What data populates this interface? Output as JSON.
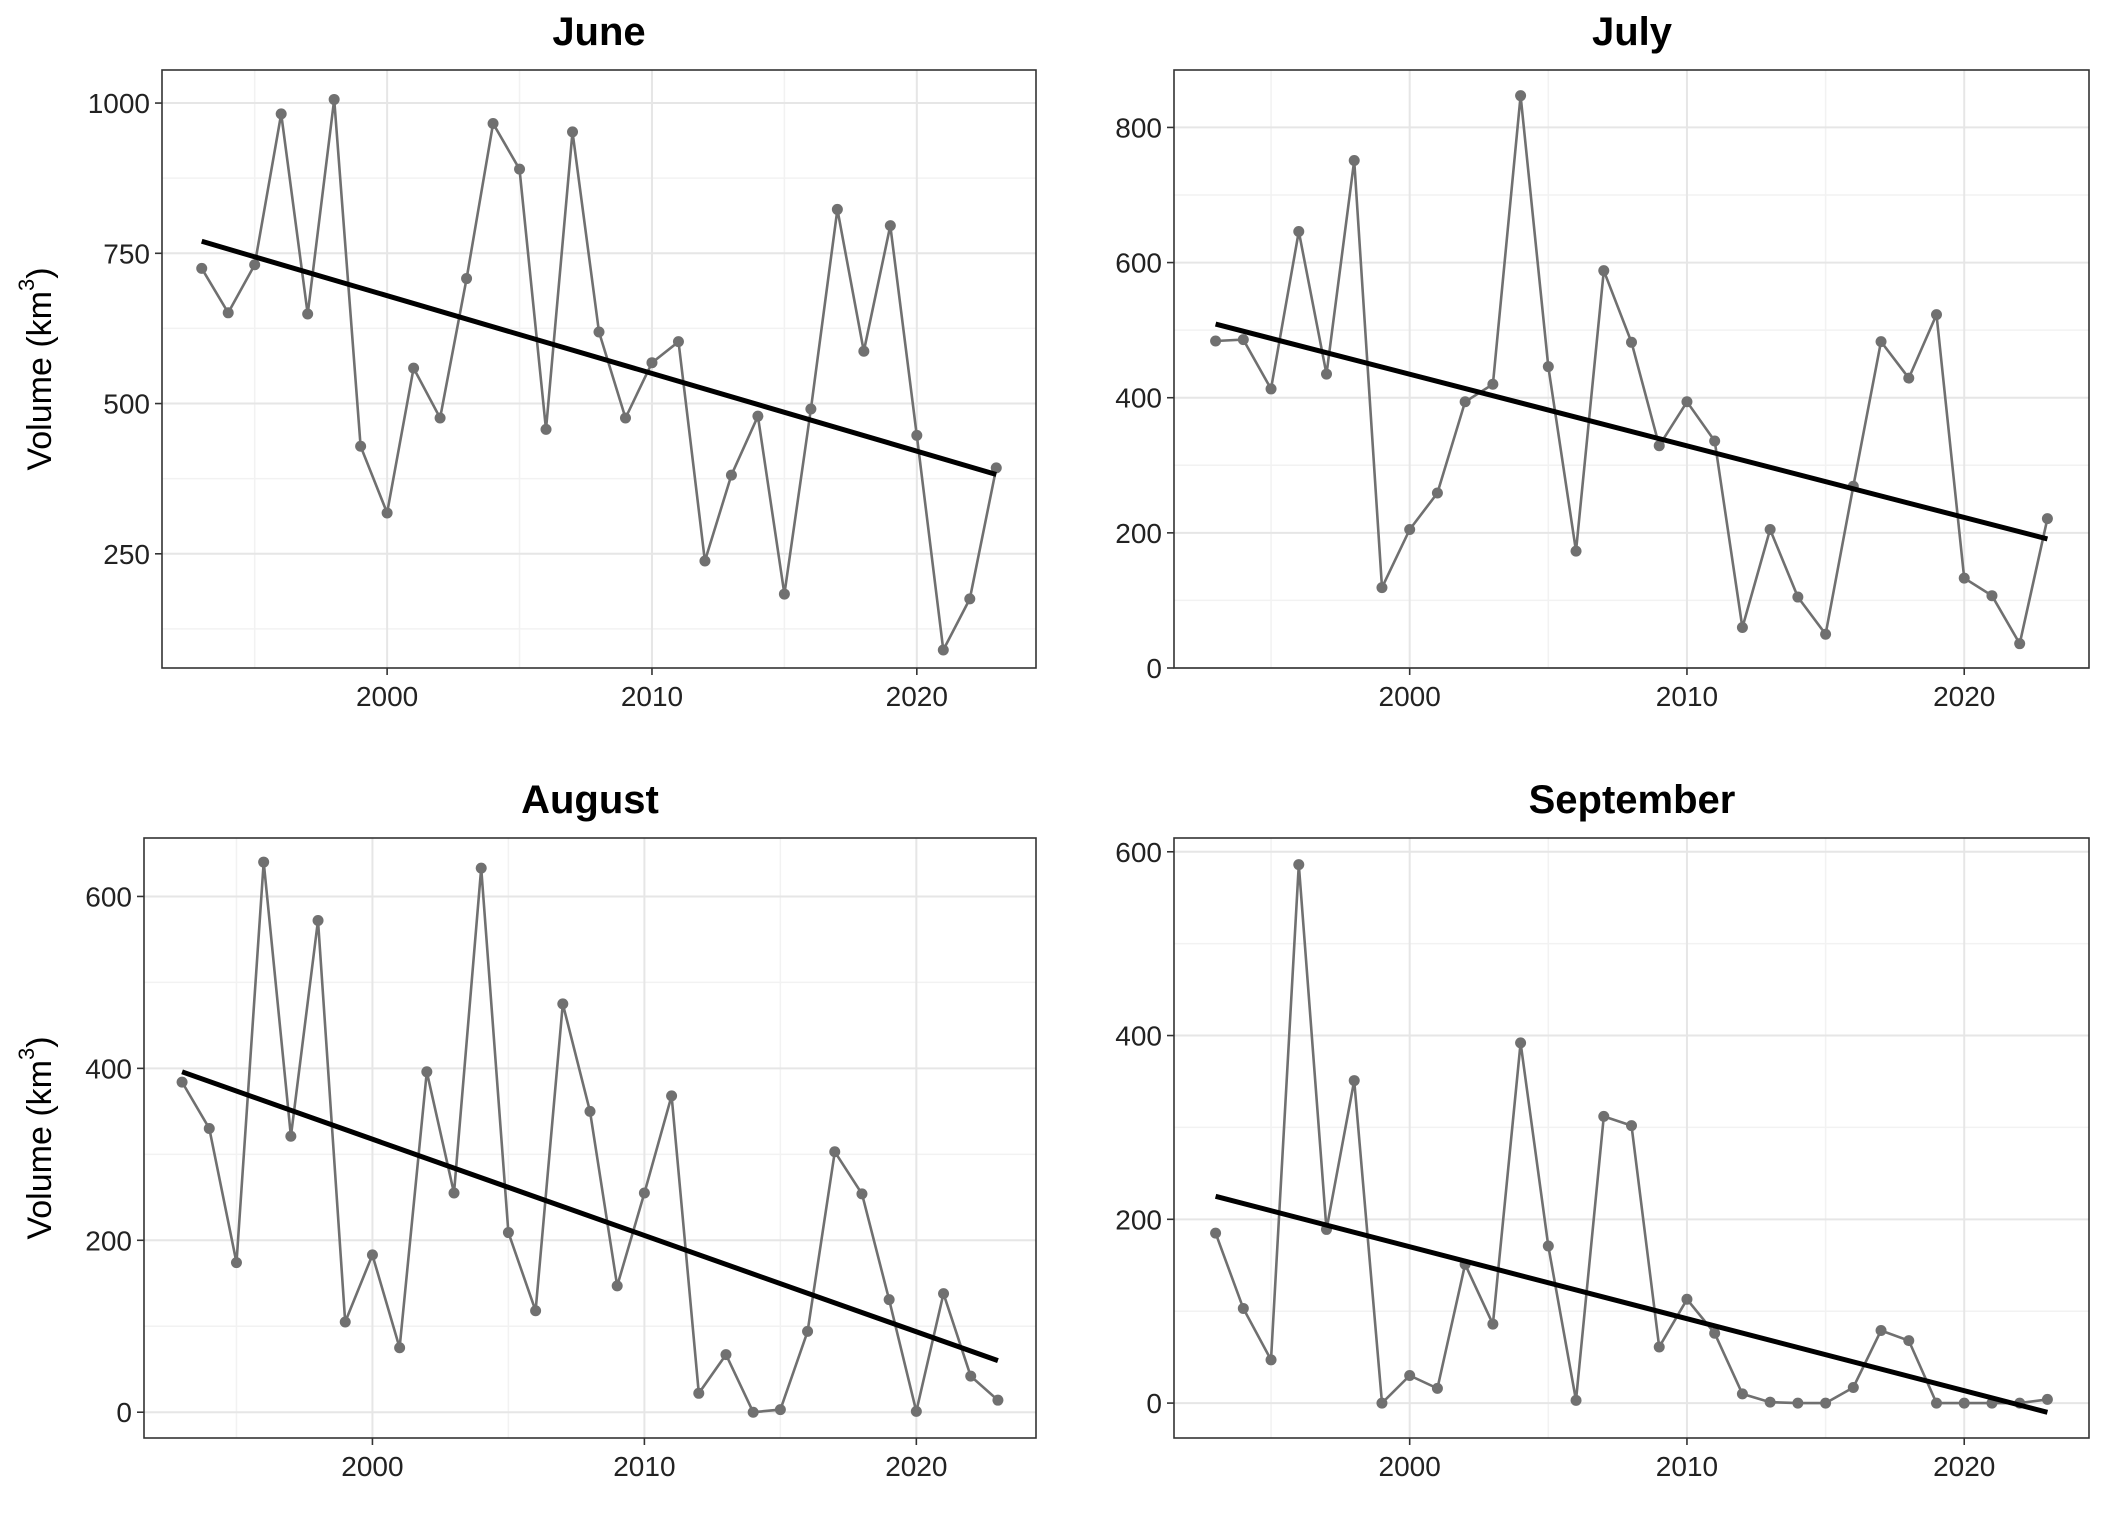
{
  "chart_data": [
    {
      "type": "line",
      "title": "June",
      "ylabel": "Volume (km3)",
      "xlabel": "",
      "x": [
        1993,
        1994,
        1995,
        1996,
        1997,
        1998,
        1999,
        2000,
        2001,
        2002,
        2003,
        2004,
        2005,
        2006,
        2007,
        2008,
        2009,
        2010,
        2011,
        2012,
        2013,
        2014,
        2015,
        2016,
        2017,
        2018,
        2019,
        2020,
        2021,
        2022,
        2023
      ],
      "series": [
        {
          "values": [
            725,
            651,
            731,
            982,
            649,
            1006,
            429,
            318,
            559,
            476,
            708,
            966,
            890,
            457,
            952,
            619,
            476,
            568,
            603,
            238,
            381,
            479,
            183,
            491,
            823,
            587,
            796,
            447,
            90,
            175,
            393
          ]
        }
      ],
      "trend": {
        "x": [
          1993,
          2023
        ],
        "y": [
          770,
          382
        ]
      },
      "xlim": [
        1991.5,
        2024.5
      ],
      "ylim": [
        60,
        1055
      ],
      "xticks": [
        2000,
        2010,
        2020
      ],
      "xtick_labels": [
        "2000",
        "2010",
        "2020"
      ],
      "yticks": [
        250,
        500,
        750,
        1000
      ],
      "ytick_labels": [
        "250",
        "500",
        "750",
        "1000"
      ],
      "grid": true
    },
    {
      "type": "line",
      "title": "July",
      "ylabel": "",
      "xlabel": "",
      "x": [
        1993,
        1994,
        1995,
        1996,
        1997,
        1998,
        1999,
        2000,
        2001,
        2002,
        2003,
        2004,
        2005,
        2006,
        2007,
        2008,
        2009,
        2010,
        2011,
        2012,
        2013,
        2014,
        2015,
        2016,
        2017,
        2018,
        2019,
        2020,
        2021,
        2022,
        2023
      ],
      "series": [
        {
          "values": [
            484,
            486,
            413,
            646,
            435,
            751,
            119,
            205,
            259,
            394,
            420,
            847,
            446,
            173,
            588,
            482,
            329,
            394,
            336,
            60,
            205,
            105,
            50,
            269,
            483,
            429,
            523,
            133,
            107,
            36,
            221
          ]
        }
      ],
      "trend": {
        "x": [
          1993,
          2023
        ],
        "y": [
          509,
          191
        ]
      },
      "xlim": [
        1991.5,
        2024.5
      ],
      "ylim": [
        0,
        885
      ],
      "xticks": [
        2000,
        2010,
        2020
      ],
      "xtick_labels": [
        "2000",
        "2010",
        "2020"
      ],
      "yticks": [
        0,
        200,
        400,
        600,
        800
      ],
      "ytick_labels": [
        "0",
        "200",
        "400",
        "600",
        "800"
      ],
      "grid": true
    },
    {
      "type": "line",
      "title": "August",
      "ylabel": "Volume (km3)",
      "xlabel": "",
      "x": [
        1993,
        1994,
        1995,
        1996,
        1997,
        1998,
        1999,
        2000,
        2001,
        2002,
        2003,
        2004,
        2005,
        2006,
        2007,
        2008,
        2009,
        2010,
        2011,
        2012,
        2013,
        2014,
        2015,
        2016,
        2017,
        2018,
        2019,
        2020,
        2021,
        2022,
        2023
      ],
      "series": [
        {
          "values": [
            384,
            330,
            174,
            640,
            321,
            572,
            105,
            183,
            75,
            396,
            255,
            633,
            209,
            118,
            475,
            350,
            147,
            255,
            368,
            22,
            67,
            0,
            3,
            94,
            303,
            254,
            131,
            1,
            138,
            42,
            14
          ]
        }
      ],
      "trend": {
        "x": [
          1993,
          2023
        ],
        "y": [
          396,
          60
        ]
      },
      "xlim": [
        1991.6,
        2024.4
      ],
      "ylim": [
        -30,
        668
      ],
      "xticks": [
        2000,
        2010,
        2020
      ],
      "xtick_labels": [
        "2000",
        "2010",
        "2020"
      ],
      "yticks": [
        0,
        200,
        400,
        600
      ],
      "ytick_labels": [
        "0",
        "200",
        "400",
        "600"
      ],
      "grid": true
    },
    {
      "type": "line",
      "title": "September",
      "ylabel": "",
      "xlabel": "",
      "x": [
        1993,
        1994,
        1995,
        1996,
        1997,
        1998,
        1999,
        2000,
        2001,
        2002,
        2003,
        2004,
        2005,
        2006,
        2007,
        2008,
        2009,
        2010,
        2011,
        2012,
        2013,
        2014,
        2015,
        2016,
        2017,
        2018,
        2019,
        2020,
        2021,
        2022,
        2023
      ],
      "series": [
        {
          "values": [
            185,
            103,
            47,
            586,
            189,
            351,
            0,
            30,
            16,
            151,
            86,
            392,
            171,
            3,
            312,
            302,
            61,
            113,
            76,
            10,
            1,
            0,
            0,
            17,
            79,
            68,
            0,
            0,
            0,
            0,
            4
          ]
        }
      ],
      "trend": {
        "x": [
          1993,
          2023
        ],
        "y": [
          225,
          -10
        ]
      },
      "xlim": [
        1991.5,
        2024.5
      ],
      "ylim": [
        -38,
        615
      ],
      "xticks": [
        2000,
        2010,
        2020
      ],
      "xtick_labels": [
        "2000",
        "2010",
        "2020"
      ],
      "yticks": [
        0,
        200,
        400,
        600
      ],
      "ytick_labels": [
        "0",
        "200",
        "400",
        "600"
      ],
      "grid": true
    }
  ]
}
